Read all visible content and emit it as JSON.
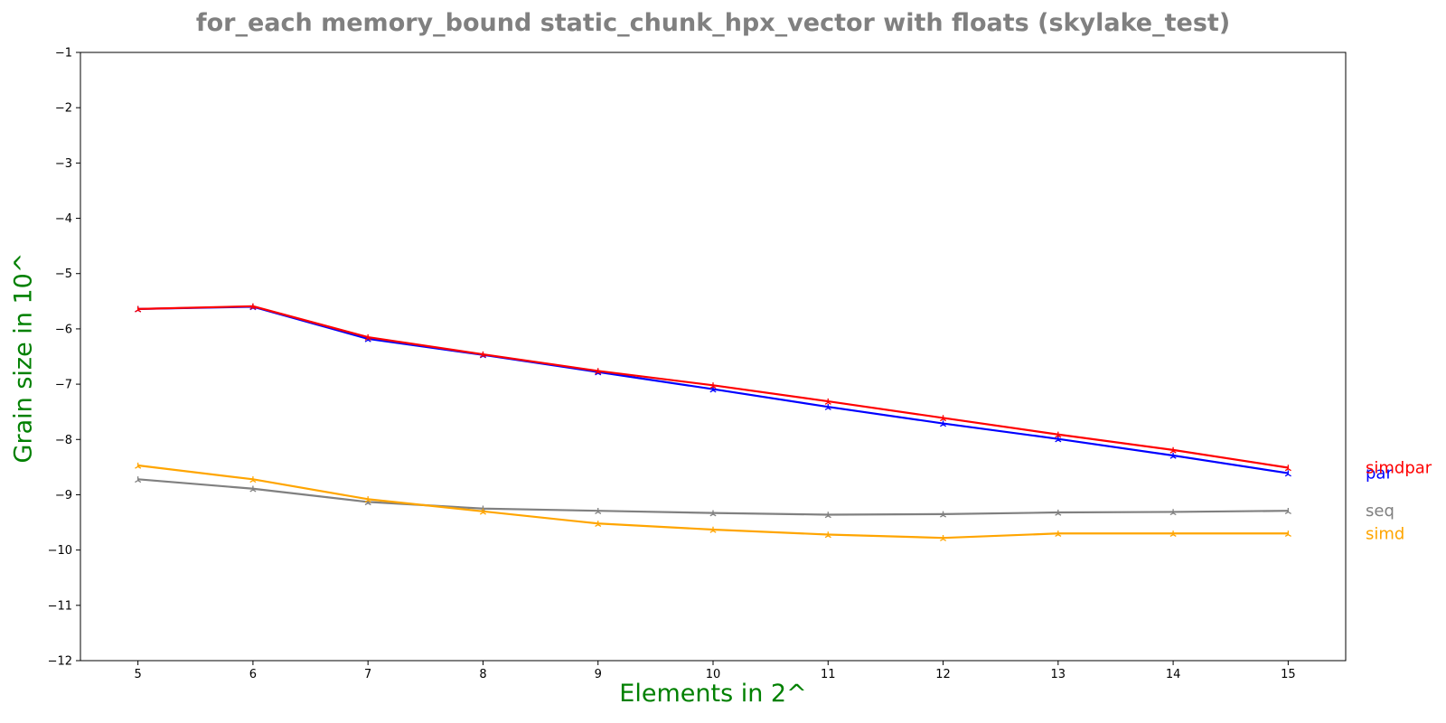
{
  "chart_data": {
    "type": "line",
    "title": "for_each memory_bound static_chunk_hpx_vector with floats  (skylake_test)",
    "xlabel": "Elements in 2^",
    "ylabel": "Grain size in 10^",
    "x": [
      5,
      6,
      7,
      8,
      9,
      10,
      11,
      12,
      13,
      14,
      15
    ],
    "xlim": [
      4.5,
      15.5
    ],
    "ylim": [
      -12,
      -1
    ],
    "x_ticks": [
      "5",
      "6",
      "7",
      "8",
      "9",
      "10",
      "11",
      "12",
      "13",
      "14",
      "15"
    ],
    "y_ticks": [
      "−1",
      "−2",
      "−3",
      "−4",
      "−5",
      "−6",
      "−7",
      "−8",
      "−9",
      "−10",
      "−11",
      "−12"
    ],
    "y_tick_values": [
      -1,
      -2,
      -3,
      -4,
      -5,
      -6,
      -7,
      -8,
      -9,
      -10,
      -11,
      -12
    ],
    "grid": false,
    "legend": "labels at right end of each line",
    "series": [
      {
        "name": "par",
        "color": "#0000ff",
        "values": [
          -5.64,
          -5.6,
          -6.18,
          -6.47,
          -6.78,
          -7.09,
          -7.41,
          -7.71,
          -7.99,
          -8.29,
          -8.61
        ]
      },
      {
        "name": "simdpar",
        "color": "#ff0000",
        "values": [
          -5.64,
          -5.59,
          -6.15,
          -6.46,
          -6.76,
          -7.02,
          -7.31,
          -7.61,
          -7.91,
          -8.19,
          -8.51
        ]
      },
      {
        "name": "seq",
        "color": "#808080",
        "values": [
          -8.72,
          -8.89,
          -9.13,
          -9.25,
          -9.29,
          -9.33,
          -9.36,
          -9.35,
          -9.32,
          -9.31,
          -9.29
        ]
      },
      {
        "name": "simd",
        "color": "#ffa500",
        "values": [
          -8.47,
          -8.72,
          -9.08,
          -9.3,
          -9.52,
          -9.63,
          -9.72,
          -9.78,
          -9.7,
          -9.7,
          -9.7
        ]
      }
    ]
  }
}
